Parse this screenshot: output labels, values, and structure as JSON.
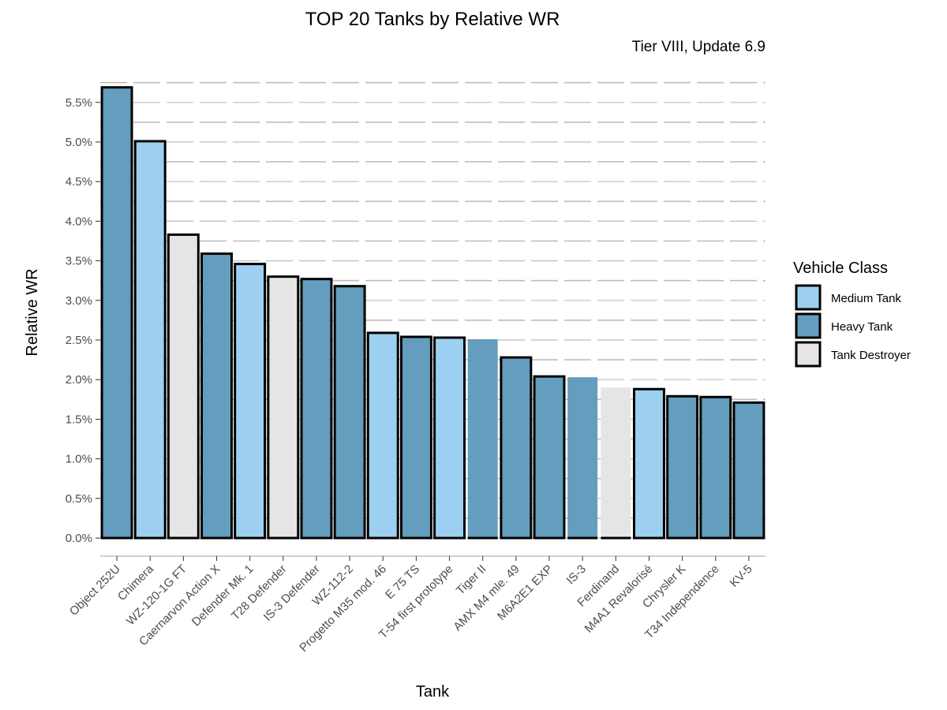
{
  "chart_data": {
    "type": "bar",
    "title": "TOP 20 Tanks by Relative WR",
    "subtitle": "Tier VIII, Update 6.9",
    "xlabel": "Tank",
    "ylabel": "Relative WR",
    "ylim": [
      -0.003,
      0.058
    ],
    "yticks": [
      0,
      0.005,
      0.01,
      0.015,
      0.02,
      0.025,
      0.03,
      0.035,
      0.04,
      0.045,
      0.05,
      0.055
    ],
    "ytick_labels": [
      "0.0%",
      "0.5%",
      "1.0%",
      "1.5%",
      "2.0%",
      "2.5%",
      "3.0%",
      "3.5%",
      "4.0%",
      "4.5%",
      "5.0%",
      "5.5%"
    ],
    "grid": "horizontal dashed",
    "legend": {
      "title": "Vehicle Class",
      "placement": "right",
      "entries": [
        {
          "label": "Medium Tank",
          "color": "#9dd0f0"
        },
        {
          "label": "Heavy Tank",
          "color": "#649dbd"
        },
        {
          "label": "Tank Destroyer",
          "color": "#e5e5e5"
        }
      ]
    },
    "bars": [
      {
        "tank": "Object 252U",
        "value": 0.0569,
        "class": "Heavy Tank",
        "outlined": true
      },
      {
        "tank": "Chimera",
        "value": 0.0501,
        "class": "Medium Tank",
        "outlined": true
      },
      {
        "tank": "WZ-120-1G FT",
        "value": 0.0383,
        "class": "Tank Destroyer",
        "outlined": true
      },
      {
        "tank": "Caernarvon Action X",
        "value": 0.0359,
        "class": "Heavy Tank",
        "outlined": true
      },
      {
        "tank": "Defender Mk. 1",
        "value": 0.0346,
        "class": "Medium Tank",
        "outlined": true
      },
      {
        "tank": "T28 Defender",
        "value": 0.033,
        "class": "Tank Destroyer",
        "outlined": true
      },
      {
        "tank": "IS-3 Defender",
        "value": 0.0327,
        "class": "Heavy Tank",
        "outlined": true
      },
      {
        "tank": "WZ-112-2",
        "value": 0.0318,
        "class": "Heavy Tank",
        "outlined": true
      },
      {
        "tank": "Progetto M35 mod. 46",
        "value": 0.0259,
        "class": "Medium Tank",
        "outlined": true
      },
      {
        "tank": "E 75 TS",
        "value": 0.0254,
        "class": "Heavy Tank",
        "outlined": true
      },
      {
        "tank": "T-54 first prototype",
        "value": 0.0253,
        "class": "Medium Tank",
        "outlined": true
      },
      {
        "tank": "Tiger II",
        "value": 0.0251,
        "class": "Heavy Tank",
        "outlined": false
      },
      {
        "tank": "AMX M4 mle. 49",
        "value": 0.0228,
        "class": "Heavy Tank",
        "outlined": true
      },
      {
        "tank": "M6A2E1 EXP",
        "value": 0.0204,
        "class": "Heavy Tank",
        "outlined": true
      },
      {
        "tank": "IS-3",
        "value": 0.0203,
        "class": "Heavy Tank",
        "outlined": false
      },
      {
        "tank": "Ferdinand",
        "value": 0.019,
        "class": "Tank Destroyer",
        "outlined": false
      },
      {
        "tank": "M4A1 Revalorisé",
        "value": 0.0188,
        "class": "Medium Tank",
        "outlined": true
      },
      {
        "tank": "Chrysler K",
        "value": 0.0179,
        "class": "Heavy Tank",
        "outlined": true
      },
      {
        "tank": "T34 Independence",
        "value": 0.0178,
        "class": "Heavy Tank",
        "outlined": true
      },
      {
        "tank": "KV-5",
        "value": 0.0171,
        "class": "Heavy Tank",
        "outlined": true
      }
    ]
  }
}
